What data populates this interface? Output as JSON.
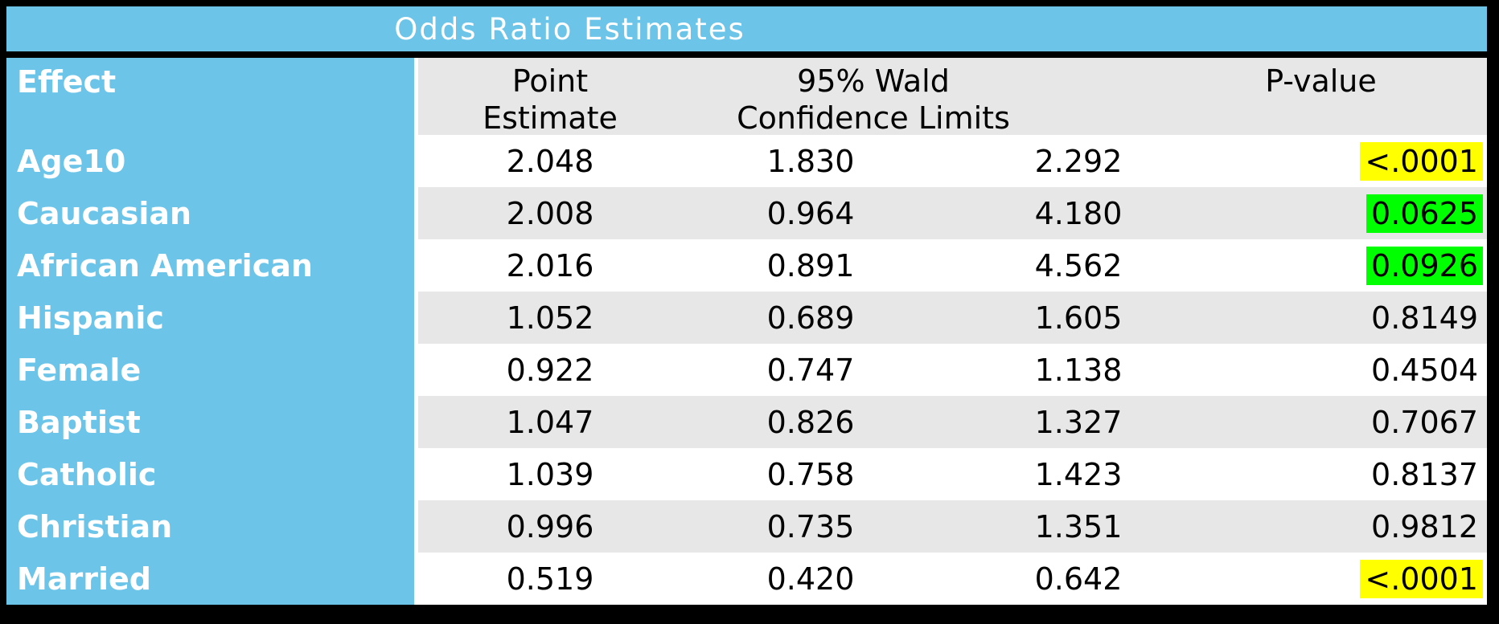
{
  "title": "Odds Ratio Estimates",
  "header": {
    "effect": "Effect",
    "point_line1": "Point",
    "point_line2": "Estimate",
    "ci_line1": "95% Wald",
    "ci_line2": "Confidence Limits",
    "p_value": "P-value"
  },
  "colors": {
    "title_bar_blue": "#6CC4E8",
    "effect_column_blue": "#6CC4E8",
    "alt_row_gray": "#E7E7E7",
    "frame_black": "#000000",
    "header_text": "#000000",
    "effect_text": "#FFFFFF",
    "highlight_yellow": "#FFFF00",
    "highlight_green": "#00FF00"
  },
  "chart_data": {
    "type": "table",
    "title": "Odds Ratio Estimates",
    "columns": [
      "Effect",
      "Point Estimate",
      "95% Wald Confidence Limits (Lower)",
      "95% Wald Confidence Limits (Upper)",
      "P-value"
    ],
    "rows": [
      {
        "effect": "Age10",
        "point_estimate": "2.048",
        "ci_lower": "1.830",
        "ci_upper": "2.292",
        "p_value": "<.0001",
        "p_highlight": "yellow"
      },
      {
        "effect": "Caucasian",
        "point_estimate": "2.008",
        "ci_lower": "0.964",
        "ci_upper": "4.180",
        "p_value": "0.0625",
        "p_highlight": "green"
      },
      {
        "effect": "African American",
        "point_estimate": "2.016",
        "ci_lower": "0.891",
        "ci_upper": "4.562",
        "p_value": "0.0926",
        "p_highlight": "green"
      },
      {
        "effect": "Hispanic",
        "point_estimate": "1.052",
        "ci_lower": "0.689",
        "ci_upper": "1.605",
        "p_value": "0.8149",
        "p_highlight": null
      },
      {
        "effect": "Female",
        "point_estimate": "0.922",
        "ci_lower": "0.747",
        "ci_upper": "1.138",
        "p_value": "0.4504",
        "p_highlight": null
      },
      {
        "effect": "Baptist",
        "point_estimate": "1.047",
        "ci_lower": "0.826",
        "ci_upper": "1.327",
        "p_value": "0.7067",
        "p_highlight": null
      },
      {
        "effect": "Catholic",
        "point_estimate": "1.039",
        "ci_lower": "0.758",
        "ci_upper": "1.423",
        "p_value": "0.8137",
        "p_highlight": null
      },
      {
        "effect": "Christian",
        "point_estimate": "0.996",
        "ci_lower": "0.735",
        "ci_upper": "1.351",
        "p_value": "0.9812",
        "p_highlight": null
      },
      {
        "effect": "Married",
        "point_estimate": "0.519",
        "ci_lower": "0.420",
        "ci_upper": "0.642",
        "p_value": "<.0001",
        "p_highlight": "yellow"
      }
    ]
  }
}
